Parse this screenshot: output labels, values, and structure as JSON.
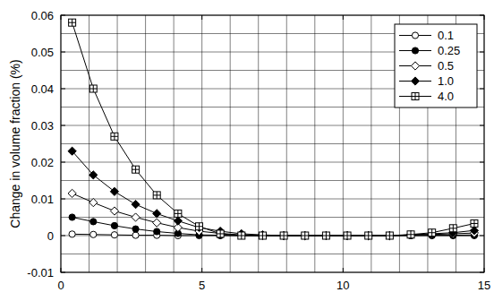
{
  "chart_data": {
    "type": "line",
    "y_label": "Change in volume fraction (%)",
    "xlim": [
      0,
      15
    ],
    "xticks": [
      0,
      5,
      10,
      15
    ],
    "ylim": [
      -0.01,
      0.06
    ],
    "yticks": [
      -0.01,
      0,
      0.01,
      0.02,
      0.03,
      0.04,
      0.05,
      0.06
    ],
    "grid": true,
    "legend": "upper right",
    "x": [
      0.4,
      1.15,
      1.9,
      2.65,
      3.4,
      4.15,
      4.9,
      5.65,
      6.4,
      7.15,
      7.9,
      8.65,
      9.4,
      10.15,
      10.9,
      11.65,
      12.4,
      13.15,
      13.9,
      14.65
    ],
    "series": [
      {
        "name": "0.1",
        "color": "#000000",
        "marker": "circle-open",
        "values": [
          0.0004,
          0.0003,
          0.0002,
          0.0001,
          0.0001,
          0,
          0,
          0,
          0,
          0,
          0,
          0,
          0,
          0,
          0,
          0,
          0,
          0,
          0,
          0
        ]
      },
      {
        "name": "0.25",
        "color": "#000000",
        "marker": "circle",
        "values": [
          0.005,
          0.0038,
          0.0027,
          0.0018,
          0.0011,
          0.0006,
          0.0002,
          0.0001,
          0,
          0,
          0,
          0,
          0,
          0,
          0,
          0,
          0,
          0.0001,
          0.0001,
          0.0002
        ]
      },
      {
        "name": "0.5",
        "color": "#000000",
        "marker": "diamond-open",
        "values": [
          0.0115,
          0.009,
          0.0067,
          0.005,
          0.0035,
          0.0022,
          0.0012,
          0.0006,
          0.0002,
          0,
          0,
          0,
          0,
          0,
          0,
          0,
          0.0002,
          0.0003,
          0.0005,
          0.0007
        ]
      },
      {
        "name": "1.0",
        "color": "#000000",
        "marker": "diamond",
        "values": [
          0.023,
          0.0165,
          0.012,
          0.0085,
          0.006,
          0.004,
          0.0022,
          0.0012,
          0.0005,
          0.0002,
          0,
          0,
          0,
          0,
          0,
          0,
          0.0002,
          0.0005,
          0.0008,
          0.0014
        ]
      },
      {
        "name": "4.0",
        "color": "#000000",
        "marker": "square-plus",
        "values": [
          0.058,
          0.04,
          0.027,
          0.018,
          0.011,
          0.006,
          0.0025,
          0.0005,
          0,
          0,
          0,
          0,
          0,
          0,
          0,
          0,
          0.0003,
          0.0008,
          0.002,
          0.0033
        ]
      }
    ]
  }
}
